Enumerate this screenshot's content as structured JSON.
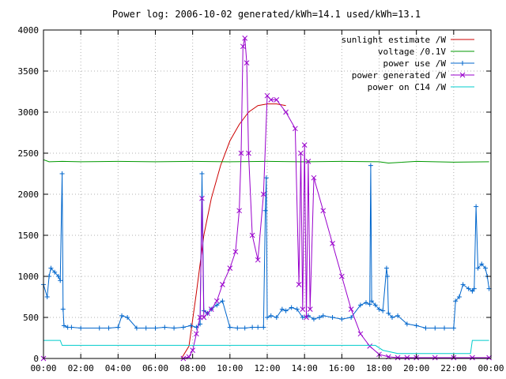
{
  "chart_data": {
    "type": "line",
    "title": "Power log: 2006-10-02 generated/kWh=14.1 used/kWh=13.1",
    "xlabel": "",
    "ylabel": "",
    "x_ticks": [
      "00:00",
      "02:00",
      "04:00",
      "06:00",
      "08:00",
      "10:00",
      "12:00",
      "14:00",
      "16:00",
      "18:00",
      "20:00",
      "22:00",
      "00:00"
    ],
    "xlim": [
      0,
      24
    ],
    "ylim": [
      0,
      4000
    ],
    "y_ticks": [
      0,
      500,
      1000,
      1500,
      2000,
      2500,
      3000,
      3500,
      4000
    ],
    "grid": true,
    "legend_position": "top-right",
    "series": [
      {
        "name": "sunlight estimate /W",
        "color": "#cc0000",
        "marker": "none",
        "x": [
          0,
          7.4,
          7.8,
          8.2,
          8.6,
          9.0,
          9.5,
          10.0,
          10.5,
          11.0,
          11.5,
          12.0,
          12.5,
          13.0
        ],
        "y": [
          0,
          0,
          150,
          800,
          1500,
          1950,
          2350,
          2650,
          2850,
          3000,
          3080,
          3100,
          3100,
          3080
        ]
      },
      {
        "name": "voltage /0.1V",
        "color": "#009900",
        "marker": "none",
        "x": [
          0,
          0.3,
          1.0,
          2.0,
          4.0,
          6.0,
          8.0,
          10.0,
          12.0,
          14.0,
          16.0,
          18.0,
          18.5,
          20.0,
          22.0,
          23.9
        ],
        "y": [
          2420,
          2395,
          2400,
          2395,
          2400,
          2395,
          2400,
          2395,
          2400,
          2395,
          2400,
          2395,
          2380,
          2400,
          2390,
          2395
        ]
      },
      {
        "name": "power use /W",
        "color": "#0066cc",
        "marker": "plus",
        "x": [
          0,
          0.2,
          0.3,
          0.4,
          0.6,
          0.8,
          0.9,
          1.0,
          1.05,
          1.1,
          1.3,
          1.5,
          2,
          3,
          3.5,
          4.0,
          4.2,
          4.5,
          5.0,
          5.5,
          6.0,
          6.5,
          7.0,
          7.5,
          7.9,
          8.2,
          8.4,
          8.5,
          8.6,
          8.8,
          9.0,
          9.3,
          9.6,
          10.0,
          10.4,
          10.8,
          11.2,
          11.5,
          11.8,
          11.9,
          11.95,
          12.0,
          12.2,
          12.5,
          12.8,
          13.0,
          13.3,
          13.6,
          13.9,
          14.2,
          14.5,
          14.8,
          15.0,
          15.5,
          16.0,
          16.5,
          17.0,
          17.3,
          17.5,
          17.55,
          17.6,
          17.8,
          18.0,
          18.2,
          18.4,
          18.45,
          18.5,
          18.7,
          19.0,
          19.5,
          20.0,
          20.5,
          21.0,
          21.5,
          22.0,
          22.1,
          22.3,
          22.5,
          22.8,
          23.0,
          23.1,
          23.2,
          23.3,
          23.5,
          23.7,
          23.8,
          23.9
        ],
        "y": [
          900,
          750,
          1000,
          1100,
          1050,
          1000,
          950,
          2250,
          600,
          400,
          380,
          380,
          370,
          370,
          370,
          380,
          520,
          500,
          370,
          370,
          370,
          380,
          370,
          380,
          400,
          380,
          420,
          2250,
          580,
          550,
          600,
          650,
          700,
          380,
          370,
          370,
          380,
          380,
          380,
          1800,
          2200,
          500,
          520,
          500,
          600,
          580,
          620,
          600,
          500,
          520,
          480,
          500,
          520,
          500,
          480,
          500,
          650,
          680,
          660,
          2350,
          700,
          650,
          600,
          580,
          1100,
          1000,
          550,
          500,
          520,
          420,
          400,
          370,
          370,
          370,
          370,
          700,
          750,
          900,
          850,
          820,
          850,
          1850,
          1100,
          1150,
          1100,
          1000,
          850
        ]
      },
      {
        "name": "power generated /W",
        "color": "#9900cc",
        "marker": "x",
        "x": [
          0,
          7.5,
          7.8,
          8.0,
          8.2,
          8.4,
          8.5,
          8.6,
          8.8,
          9.0,
          9.3,
          9.6,
          10.0,
          10.3,
          10.5,
          10.6,
          10.7,
          10.8,
          10.9,
          11.0,
          11.2,
          11.5,
          11.8,
          12.0,
          12.2,
          12.5,
          13.0,
          13.5,
          13.7,
          13.8,
          13.9,
          14.0,
          14.1,
          14.2,
          14.3,
          14.5,
          15.0,
          15.5,
          16.0,
          16.5,
          17.0,
          17.5,
          18.0,
          18.5,
          19.0,
          19.5,
          20.0,
          21.0,
          22.0,
          23.0,
          23.9
        ],
        "y": [
          0,
          0,
          20,
          100,
          300,
          500,
          1950,
          500,
          550,
          600,
          700,
          900,
          1100,
          1300,
          1800,
          2500,
          3800,
          3900,
          3600,
          2500,
          1500,
          1200,
          2000,
          3200,
          3150,
          3150,
          3000,
          2800,
          900,
          2500,
          600,
          2600,
          500,
          2400,
          600,
          2200,
          1800,
          1400,
          1000,
          600,
          300,
          150,
          50,
          20,
          10,
          10,
          10,
          10,
          10,
          10,
          10
        ]
      },
      {
        "name": "power on C14 /W",
        "color": "#00cccc",
        "marker": "none",
        "x": [
          0,
          0.9,
          1.0,
          4.0,
          8.0,
          12.0,
          16.0,
          17.8,
          18.2,
          19.0,
          20.0,
          22.0,
          22.9,
          23.0,
          23.9
        ],
        "y": [
          220,
          220,
          160,
          160,
          160,
          160,
          160,
          160,
          100,
          60,
          60,
          60,
          60,
          220,
          220
        ]
      }
    ]
  }
}
